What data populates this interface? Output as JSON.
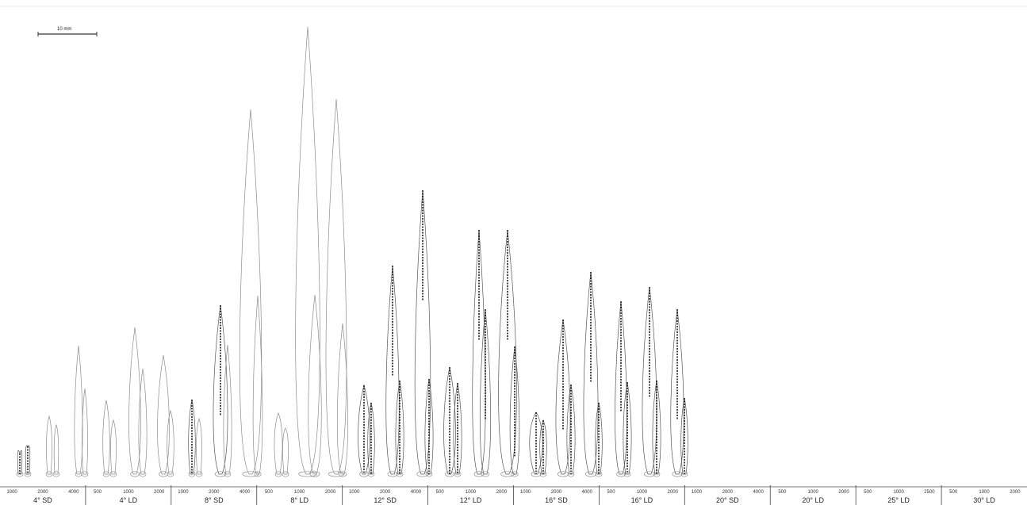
{
  "scale_bar": {
    "label": "10 mm"
  },
  "groups": [
    {
      "temperature": "4°",
      "photoperiod": "SD",
      "ticks": [
        "1000",
        "2000",
        "4000"
      ]
    },
    {
      "temperature": "4°",
      "photoperiod": "LD",
      "ticks": [
        "500",
        "1000",
        "2000"
      ]
    },
    {
      "temperature": "8°",
      "photoperiod": "SD",
      "ticks": [
        "1000",
        "2000",
        "4000"
      ]
    },
    {
      "temperature": "8°",
      "photoperiod": "LD",
      "ticks": [
        "500",
        "1000",
        "2000"
      ]
    },
    {
      "temperature": "12°",
      "photoperiod": "SD",
      "ticks": [
        "1000",
        "2000",
        "4000"
      ]
    },
    {
      "temperature": "12°",
      "photoperiod": "LD",
      "ticks": [
        "500",
        "1000",
        "2000"
      ]
    },
    {
      "temperature": "16°",
      "photoperiod": "SD",
      "ticks": [
        "1000",
        "2000",
        "4000"
      ]
    },
    {
      "temperature": "16°",
      "photoperiod": "LD",
      "ticks": [
        "500",
        "1000",
        "2000"
      ]
    },
    {
      "temperature": "20°",
      "photoperiod": "SD",
      "ticks": [
        "1000",
        "2000",
        "4000"
      ]
    },
    {
      "temperature": "20°",
      "photoperiod": "LD",
      "ticks": [
        "500",
        "1000",
        "2000"
      ]
    },
    {
      "temperature": "25°",
      "photoperiod": "LD",
      "ticks": [
        "500",
        "1000",
        "2500"
      ]
    },
    {
      "temperature": "30°",
      "photoperiod": "LD",
      "ticks": [
        "500",
        "1000",
        "2000"
      ]
    }
  ],
  "colors": {
    "outline": "#8c8c8c",
    "dark": "#1a1a1a",
    "axis": "#444444"
  }
}
